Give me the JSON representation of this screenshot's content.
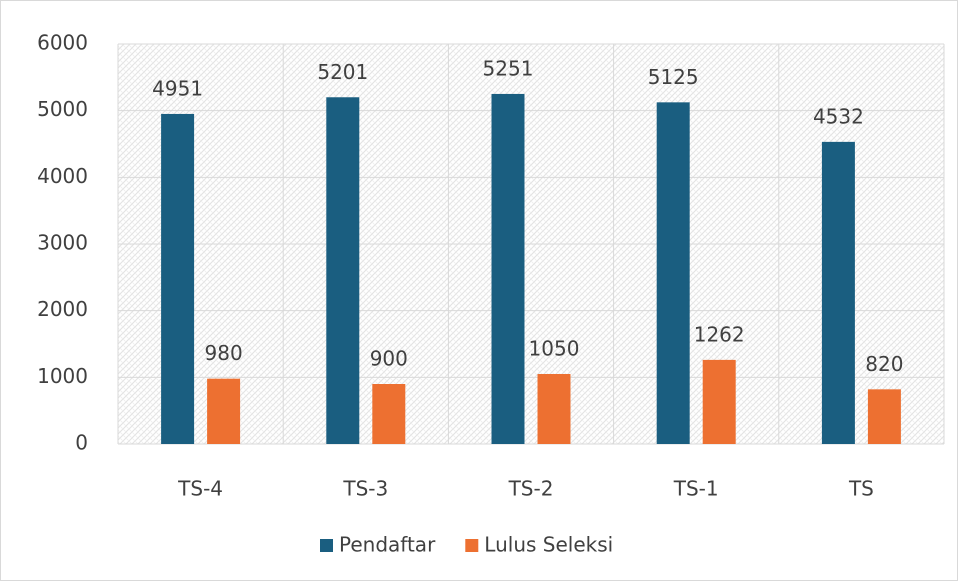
{
  "chart_data": {
    "type": "bar",
    "categories": [
      "TS-4",
      "TS-3",
      "TS-2",
      "TS-1",
      "TS"
    ],
    "series": [
      {
        "name": "Pendaftar",
        "color": "#1a5e80",
        "values": [
          4951,
          5201,
          5251,
          5125,
          4532
        ]
      },
      {
        "name": "Lulus Seleksi",
        "color": "#ed7031",
        "values": [
          980,
          900,
          1050,
          1262,
          820
        ]
      }
    ],
    "ylim": [
      0,
      6000
    ],
    "yticks": [
      0,
      1000,
      2000,
      3000,
      4000,
      5000,
      6000
    ],
    "grid": true,
    "legend": "bottom"
  }
}
